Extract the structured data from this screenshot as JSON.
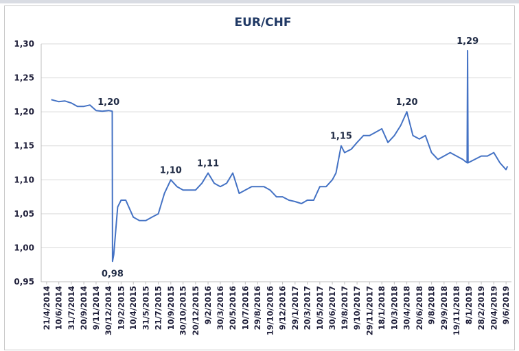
{
  "chart_data": {
    "type": "line",
    "title": "EUR/CHF",
    "x": [
      "10/5/2014",
      "10/6/2014",
      "5/7/2014",
      "31/7/2014",
      "25/8/2014",
      "20/9/2014",
      "15/10/2014",
      "9/11/2014",
      "4/12/2014",
      "30/12/2014",
      "14/1/2015",
      "15/1/2015",
      "20/1/2015",
      "5/2/2015",
      "19/2/2015",
      "10/3/2015",
      "10/4/2015",
      "5/5/2015",
      "31/5/2015",
      "25/6/2015",
      "21/7/2015",
      "15/8/2015",
      "10/9/2015",
      "5/10/2015",
      "30/10/2015",
      "25/11/2015",
      "20/12/2015",
      "15/1/2016",
      "9/2/2016",
      "5/3/2016",
      "30/3/2016",
      "25/4/2016",
      "20/5/2016",
      "15/6/2016",
      "10/7/2016",
      "5/8/2016",
      "29/8/2016",
      "24/9/2016",
      "19/10/2016",
      "14/11/2016",
      "9/12/2016",
      "4/1/2017",
      "29/1/2017",
      "24/2/2017",
      "20/3/2017",
      "15/4/2017",
      "10/5/2017",
      "5/6/2017",
      "30/6/2017",
      "15/7/2017",
      "5/8/2017",
      "19/8/2017",
      "15/9/2017",
      "9/10/2017",
      "4/11/2017",
      "29/11/2017",
      "24/12/2017",
      "18/1/2018",
      "12/2/2018",
      "10/3/2018",
      "5/4/2018",
      "30/4/2018",
      "25/5/2018",
      "20/6/2018",
      "15/7/2018",
      "9/8/2018",
      "4/9/2018",
      "29/9/2018",
      "24/10/2018",
      "19/11/2018",
      "14/12/2018",
      "1/1/2019",
      "3/1/2019",
      "5/1/2019",
      "28/2/2019",
      "25/3/2019",
      "20/4/2019",
      "15/5/2019",
      "9/6/2019",
      "15/6/2019"
    ],
    "series": [
      {
        "name": "EUR/CHF",
        "color": "#4472c4",
        "values": [
          1.218,
          1.215,
          1.216,
          1.213,
          1.208,
          1.208,
          1.21,
          1.202,
          1.201,
          1.202,
          1.201,
          0.98,
          0.99,
          1.06,
          1.07,
          1.07,
          1.045,
          1.04,
          1.04,
          1.045,
          1.05,
          1.08,
          1.1,
          1.09,
          1.085,
          1.085,
          1.085,
          1.095,
          1.11,
          1.095,
          1.09,
          1.095,
          1.11,
          1.08,
          1.085,
          1.09,
          1.09,
          1.09,
          1.085,
          1.075,
          1.075,
          1.07,
          1.068,
          1.065,
          1.07,
          1.07,
          1.09,
          1.09,
          1.1,
          1.11,
          1.15,
          1.14,
          1.145,
          1.155,
          1.165,
          1.165,
          1.17,
          1.175,
          1.155,
          1.165,
          1.18,
          1.2,
          1.165,
          1.16,
          1.165,
          1.14,
          1.13,
          1.135,
          1.14,
          1.135,
          1.13,
          1.125,
          1.29,
          1.125,
          1.135,
          1.135,
          1.14,
          1.125,
          1.115,
          1.12
        ]
      }
    ],
    "annotations": [
      {
        "x": "30/12/2014",
        "value": 1.2,
        "label": "1,20"
      },
      {
        "x": "15/1/2015",
        "value": 0.98,
        "label": "0,98"
      },
      {
        "x": "10/9/2015",
        "value": 1.1,
        "label": "1,10"
      },
      {
        "x": "9/2/2016",
        "value": 1.11,
        "label": "1,11"
      },
      {
        "x": "5/8/2017",
        "value": 1.15,
        "label": "1,15"
      },
      {
        "x": "30/4/2018",
        "value": 1.2,
        "label": "1,20"
      },
      {
        "x": "3/1/2019",
        "value": 1.29,
        "label": "1,29"
      }
    ],
    "xlim": [
      "30/3/2014",
      "1/7/2019"
    ],
    "xticks": [
      "21/4/2014",
      "10/6/2014",
      "31/7/2014",
      "20/9/2014",
      "9/11/2014",
      "30/12/2014",
      "19/2/2015",
      "10/4/2015",
      "31/5/2015",
      "21/7/2015",
      "10/9/2015",
      "30/10/2015",
      "20/12/2015",
      "9/2/2016",
      "30/3/2016",
      "20/5/2016",
      "10/7/2016",
      "29/8/2016",
      "19/10/2016",
      "9/12/2016",
      "29/1/2017",
      "20/3/2017",
      "10/5/2017",
      "30/6/2017",
      "19/8/2017",
      "9/10/2017",
      "29/11/2017",
      "18/1/2018",
      "10/3/2018",
      "30/4/2018",
      "20/6/2018",
      "9/8/2018",
      "29/9/2018",
      "19/11/2018",
      "8/1/2019",
      "28/2/2019",
      "20/4/2019",
      "9/6/2019"
    ],
    "ylim": [
      0.95,
      1.3
    ],
    "yticks": [
      {
        "value": 0.95,
        "label": "0,95"
      },
      {
        "value": 1.0,
        "label": "1,00"
      },
      {
        "value": 1.05,
        "label": "1,05"
      },
      {
        "value": 1.1,
        "label": "1,10"
      },
      {
        "value": 1.15,
        "label": "1,15"
      },
      {
        "value": 1.2,
        "label": "1,20"
      },
      {
        "value": 1.25,
        "label": "1,25"
      },
      {
        "value": 1.3,
        "label": "1,30"
      }
    ],
    "grid": true
  }
}
